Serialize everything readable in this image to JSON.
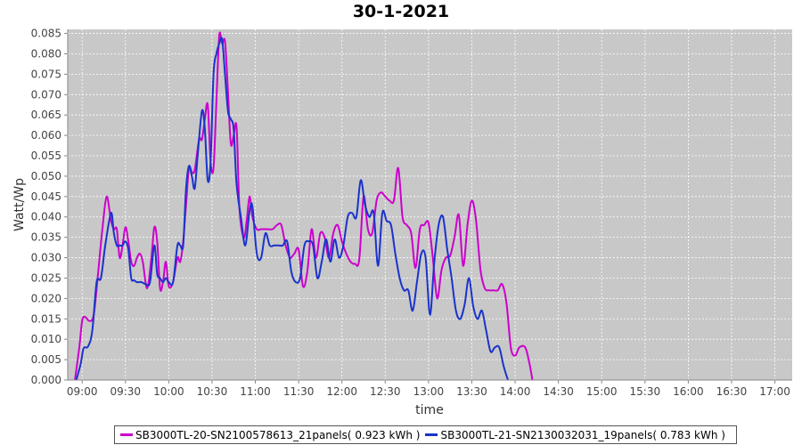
{
  "chart_data": {
    "type": "line",
    "title": "30-1-2021",
    "xlabel": "time",
    "ylabel": "Watt/Wp",
    "x_unit": "time of day (HH:MM)",
    "xlim": [
      "08:50",
      "17:12"
    ],
    "ylim": [
      0,
      0.086
    ],
    "x_ticks": [
      "09:00",
      "09:30",
      "10:00",
      "10:30",
      "11:00",
      "11:30",
      "12:00",
      "12:30",
      "13:00",
      "13:30",
      "14:00",
      "14:30",
      "15:00",
      "15:30",
      "16:00",
      "16:30",
      "17:00"
    ],
    "y_ticks": [
      "0.000",
      "0.005",
      "0.010",
      "0.015",
      "0.020",
      "0.025",
      "0.030",
      "0.035",
      "0.040",
      "0.045",
      "0.050",
      "0.055",
      "0.060",
      "0.065",
      "0.070",
      "0.075",
      "0.080",
      "0.085"
    ],
    "grid": true,
    "legend_position": "bottom",
    "series": [
      {
        "name": "SB3000TL-20-SN2100578613_21panels( 0.923 kWh )",
        "color": "#cc00cc",
        "points": [
          [
            "08:55",
            0.0
          ],
          [
            "08:58",
            0.008
          ],
          [
            "09:00",
            0.0145
          ],
          [
            "09:02",
            0.0155
          ],
          [
            "09:05",
            0.0145
          ],
          [
            "09:08",
            0.016
          ],
          [
            "09:11",
            0.026
          ],
          [
            "09:14",
            0.037
          ],
          [
            "09:17",
            0.045
          ],
          [
            "09:20",
            0.039
          ],
          [
            "09:22",
            0.037
          ],
          [
            "09:24",
            0.037
          ],
          [
            "09:26",
            0.03
          ],
          [
            "09:28",
            0.033
          ],
          [
            "09:30",
            0.0375
          ],
          [
            "09:32",
            0.034
          ],
          [
            "09:34",
            0.029
          ],
          [
            "09:36",
            0.028
          ],
          [
            "09:38",
            0.03
          ],
          [
            "09:40",
            0.031
          ],
          [
            "09:42",
            0.029
          ],
          [
            "09:45",
            0.0225
          ],
          [
            "09:48",
            0.03
          ],
          [
            "09:50",
            0.0375
          ],
          [
            "09:52",
            0.034
          ],
          [
            "09:54",
            0.0225
          ],
          [
            "09:56",
            0.024
          ],
          [
            "09:58",
            0.029
          ],
          [
            "10:00",
            0.023
          ],
          [
            "10:03",
            0.024
          ],
          [
            "10:06",
            0.03
          ],
          [
            "10:08",
            0.029
          ],
          [
            "10:10",
            0.034
          ],
          [
            "10:12",
            0.043
          ],
          [
            "10:14",
            0.052
          ],
          [
            "10:16",
            0.051
          ],
          [
            "10:18",
            0.0515
          ],
          [
            "10:21",
            0.059
          ],
          [
            "10:23",
            0.059
          ],
          [
            "10:25",
            0.064
          ],
          [
            "10:27",
            0.0675
          ],
          [
            "10:29",
            0.0535
          ],
          [
            "10:31",
            0.052
          ],
          [
            "10:33",
            0.068
          ],
          [
            "10:35",
            0.0845
          ],
          [
            "10:37",
            0.0825
          ],
          [
            "10:39",
            0.083
          ],
          [
            "10:41",
            0.071
          ],
          [
            "10:43",
            0.058
          ],
          [
            "10:45",
            0.06
          ],
          [
            "10:47",
            0.062
          ],
          [
            "10:49",
            0.042
          ],
          [
            "10:52",
            0.035
          ],
          [
            "10:54",
            0.039
          ],
          [
            "10:56",
            0.045
          ],
          [
            "10:58",
            0.04
          ],
          [
            "11:01",
            0.037
          ],
          [
            "11:04",
            0.037
          ],
          [
            "11:08",
            0.037
          ],
          [
            "11:12",
            0.037
          ],
          [
            "11:15",
            0.038
          ],
          [
            "11:18",
            0.038
          ],
          [
            "11:21",
            0.033
          ],
          [
            "11:24",
            0.03
          ],
          [
            "11:27",
            0.031
          ],
          [
            "11:30",
            0.032
          ],
          [
            "11:33",
            0.023
          ],
          [
            "11:36",
            0.0265
          ],
          [
            "11:39",
            0.037
          ],
          [
            "11:42",
            0.03
          ],
          [
            "11:45",
            0.036
          ],
          [
            "11:48",
            0.035
          ],
          [
            "11:51",
            0.03
          ],
          [
            "11:54",
            0.036
          ],
          [
            "11:57",
            0.038
          ],
          [
            "12:00",
            0.034
          ],
          [
            "12:03",
            0.031
          ],
          [
            "12:06",
            0.029
          ],
          [
            "12:09",
            0.0285
          ],
          [
            "12:12",
            0.0295
          ],
          [
            "12:15",
            0.045
          ],
          [
            "12:18",
            0.037
          ],
          [
            "12:21",
            0.036
          ],
          [
            "12:24",
            0.044
          ],
          [
            "12:27",
            0.046
          ],
          [
            "12:30",
            0.045
          ],
          [
            "12:33",
            0.044
          ],
          [
            "12:36",
            0.044
          ],
          [
            "12:39",
            0.052
          ],
          [
            "12:42",
            0.04
          ],
          [
            "12:45",
            0.038
          ],
          [
            "12:48",
            0.036
          ],
          [
            "12:51",
            0.0275
          ],
          [
            "12:54",
            0.037
          ],
          [
            "12:57",
            0.038
          ],
          [
            "13:00",
            0.0385
          ],
          [
            "13:03",
            0.03
          ],
          [
            "13:06",
            0.02
          ],
          [
            "13:09",
            0.027
          ],
          [
            "13:12",
            0.03
          ],
          [
            "13:15",
            0.0305
          ],
          [
            "13:18",
            0.035
          ],
          [
            "13:21",
            0.0405
          ],
          [
            "13:24",
            0.028
          ],
          [
            "13:27",
            0.038
          ],
          [
            "13:30",
            0.044
          ],
          [
            "13:33",
            0.039
          ],
          [
            "13:36",
            0.027
          ],
          [
            "13:39",
            0.0225
          ],
          [
            "13:42",
            0.022
          ],
          [
            "13:45",
            0.022
          ],
          [
            "13:48",
            0.022
          ],
          [
            "13:51",
            0.0235
          ],
          [
            "13:54",
            0.019
          ],
          [
            "13:57",
            0.008
          ],
          [
            "14:00",
            0.006
          ],
          [
            "14:03",
            0.008
          ],
          [
            "14:07",
            0.008
          ],
          [
            "14:10",
            0.004
          ],
          [
            "14:12",
            0.0
          ]
        ]
      },
      {
        "name": "SB3000TL-21-SN2130032031_19panels( 0.783 kWh )",
        "color": "#1a33cc",
        "points": [
          [
            "08:56",
            0.0
          ],
          [
            "08:59",
            0.004
          ],
          [
            "09:01",
            0.0078
          ],
          [
            "09:04",
            0.0082
          ],
          [
            "09:07",
            0.012
          ],
          [
            "09:10",
            0.024
          ],
          [
            "09:13",
            0.025
          ],
          [
            "09:16",
            0.033
          ],
          [
            "09:20",
            0.041
          ],
          [
            "09:22",
            0.036
          ],
          [
            "09:24",
            0.033
          ],
          [
            "09:26",
            0.033
          ],
          [
            "09:28",
            0.033
          ],
          [
            "09:30",
            0.034
          ],
          [
            "09:32",
            0.032
          ],
          [
            "09:34",
            0.025
          ],
          [
            "09:36",
            0.0245
          ],
          [
            "09:38",
            0.024
          ],
          [
            "09:41",
            0.024
          ],
          [
            "09:44",
            0.0235
          ],
          [
            "09:47",
            0.024
          ],
          [
            "09:50",
            0.033
          ],
          [
            "09:52",
            0.026
          ],
          [
            "09:54",
            0.025
          ],
          [
            "09:56",
            0.024
          ],
          [
            "09:58",
            0.025
          ],
          [
            "10:00",
            0.024
          ],
          [
            "10:03",
            0.024
          ],
          [
            "10:06",
            0.033
          ],
          [
            "10:08",
            0.033
          ],
          [
            "10:10",
            0.033
          ],
          [
            "10:12",
            0.047
          ],
          [
            "10:14",
            0.0525
          ],
          [
            "10:16",
            0.05
          ],
          [
            "10:18",
            0.047
          ],
          [
            "10:20",
            0.055
          ],
          [
            "10:23",
            0.066
          ],
          [
            "10:25",
            0.0615
          ],
          [
            "10:27",
            0.049
          ],
          [
            "10:29",
            0.0535
          ],
          [
            "10:31",
            0.075
          ],
          [
            "10:33",
            0.08
          ],
          [
            "10:35",
            0.0825
          ],
          [
            "10:37",
            0.0835
          ],
          [
            "10:39",
            0.075
          ],
          [
            "10:41",
            0.066
          ],
          [
            "10:43",
            0.064
          ],
          [
            "10:45",
            0.0615
          ],
          [
            "10:47",
            0.048
          ],
          [
            "10:50",
            0.04
          ],
          [
            "10:53",
            0.033
          ],
          [
            "10:56",
            0.0415
          ],
          [
            "10:58",
            0.0425
          ],
          [
            "11:01",
            0.031
          ],
          [
            "11:04",
            0.03
          ],
          [
            "11:07",
            0.036
          ],
          [
            "11:10",
            0.033
          ],
          [
            "11:13",
            0.033
          ],
          [
            "11:16",
            0.033
          ],
          [
            "11:19",
            0.033
          ],
          [
            "11:22",
            0.034
          ],
          [
            "11:25",
            0.0265
          ],
          [
            "11:28",
            0.024
          ],
          [
            "11:31",
            0.025
          ],
          [
            "11:34",
            0.033
          ],
          [
            "11:37",
            0.034
          ],
          [
            "11:40",
            0.033
          ],
          [
            "11:43",
            0.025
          ],
          [
            "11:46",
            0.029
          ],
          [
            "11:49",
            0.0345
          ],
          [
            "11:52",
            0.029
          ],
          [
            "11:55",
            0.0345
          ],
          [
            "11:58",
            0.03
          ],
          [
            "12:01",
            0.033
          ],
          [
            "12:04",
            0.04
          ],
          [
            "12:07",
            0.041
          ],
          [
            "12:10",
            0.04
          ],
          [
            "12:13",
            0.049
          ],
          [
            "12:16",
            0.043
          ],
          [
            "12:19",
            0.04
          ],
          [
            "12:22",
            0.041
          ],
          [
            "12:25",
            0.028
          ],
          [
            "12:28",
            0.041
          ],
          [
            "12:31",
            0.039
          ],
          [
            "12:34",
            0.038
          ],
          [
            "12:37",
            0.031
          ],
          [
            "12:40",
            0.025
          ],
          [
            "12:43",
            0.022
          ],
          [
            "12:46",
            0.022
          ],
          [
            "12:49",
            0.017
          ],
          [
            "12:52",
            0.024
          ],
          [
            "12:55",
            0.031
          ],
          [
            "12:58",
            0.03
          ],
          [
            "13:01",
            0.016
          ],
          [
            "13:04",
            0.029
          ],
          [
            "13:07",
            0.038
          ],
          [
            "13:10",
            0.04
          ],
          [
            "13:13",
            0.032
          ],
          [
            "13:16",
            0.025
          ],
          [
            "13:19",
            0.017
          ],
          [
            "13:22",
            0.015
          ],
          [
            "13:25",
            0.0185
          ],
          [
            "13:28",
            0.025
          ],
          [
            "13:31",
            0.018
          ],
          [
            "13:34",
            0.015
          ],
          [
            "13:37",
            0.017
          ],
          [
            "13:40",
            0.012
          ],
          [
            "13:43",
            0.007
          ],
          [
            "13:46",
            0.008
          ],
          [
            "13:49",
            0.008
          ],
          [
            "13:52",
            0.0035
          ],
          [
            "13:55",
            0.0
          ]
        ]
      }
    ]
  }
}
